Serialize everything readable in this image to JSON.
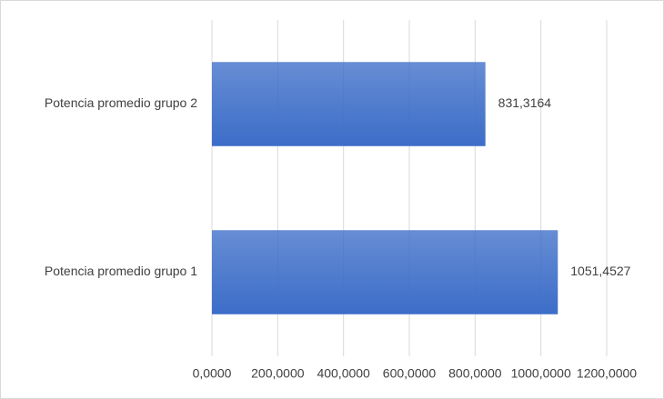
{
  "chart_data": {
    "type": "hbar",
    "categories": [
      "Potencia promedio grupo 2",
      "Potencia promedio grupo 1"
    ],
    "values": [
      831.3164,
      1051.4527
    ],
    "value_labels": [
      "831,3164",
      "1051,4527"
    ],
    "color": "#3c6dc8",
    "xlim": [
      0,
      1200
    ],
    "xticks": [
      {
        "value": 0,
        "label": "0,0000"
      },
      {
        "value": 200,
        "label": "200,0000"
      },
      {
        "value": 400,
        "label": "400,0000"
      },
      {
        "value": 600,
        "label": "600,0000"
      },
      {
        "value": 800,
        "label": "800,0000"
      },
      {
        "value": 1000,
        "label": "1000,0000"
      },
      {
        "value": 1200,
        "label": "1200,0000"
      }
    ],
    "grid": true
  }
}
